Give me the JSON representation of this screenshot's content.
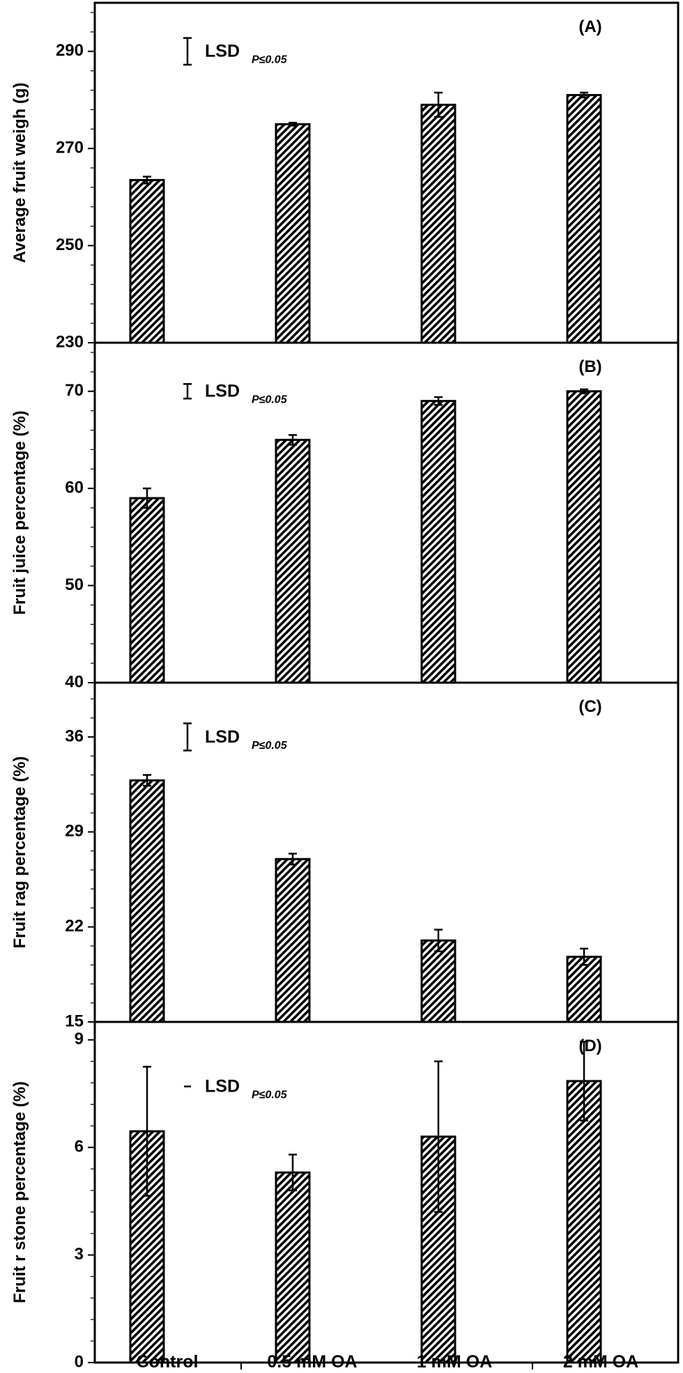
{
  "chart_data": [
    {
      "type": "bar",
      "panel_label": "(A)",
      "ylabel": "Average fruit weigh (g)",
      "ylim": [
        230,
        300
      ],
      "yticks": [
        230,
        250,
        270,
        290
      ],
      "categories": [
        "Control",
        "0.5 mM OA",
        "1 mM OA",
        "2 mM OA"
      ],
      "values": [
        263.5,
        275.0,
        279.0,
        281.0
      ],
      "errors": [
        0.7,
        0.3,
        2.5,
        0.5
      ],
      "lsd_label": "LSD",
      "lsd_subscript": "P≤0.05",
      "lsd_value": 5.5,
      "lsd_center": 290
    },
    {
      "type": "bar",
      "panel_label": "(B)",
      "ylabel": "Fruit juice percentage (%)",
      "ylim": [
        40,
        75
      ],
      "yticks": [
        40,
        50,
        60,
        70
      ],
      "categories": [
        "Control",
        "0.5 mM OA",
        "1 mM OA",
        "2 mM OA"
      ],
      "values": [
        59.0,
        65.0,
        69.0,
        70.0
      ],
      "errors": [
        1.0,
        0.5,
        0.4,
        0.2
      ],
      "lsd_label": "LSD",
      "lsd_subscript": "P≤0.05",
      "lsd_value": 1.5,
      "lsd_center": 70
    },
    {
      "type": "bar",
      "panel_label": "(C)",
      "ylabel": "Fruit rag percentage (%)",
      "ylim": [
        15,
        40
      ],
      "yticks": [
        15,
        22,
        29,
        36
      ],
      "categories": [
        "Control",
        "0.5 mM OA",
        "1 mM OA",
        "2 mM OA"
      ],
      "values": [
        32.8,
        27.0,
        21.0,
        19.8
      ],
      "errors": [
        0.4,
        0.4,
        0.8,
        0.6
      ],
      "lsd_label": "LSD",
      "lsd_subscript": "P≤0.05",
      "lsd_value": 2.0,
      "lsd_center": 36
    },
    {
      "type": "bar",
      "panel_label": "(D)",
      "ylabel": "Fruit r stone percentage (%)",
      "ylim": [
        0,
        9.5
      ],
      "yticks": [
        0,
        3,
        6,
        9
      ],
      "categories": [
        "Control",
        "0.5 mM OA",
        "1 mM OA",
        "2 mM OA"
      ],
      "values": [
        6.45,
        5.3,
        6.3,
        7.85
      ],
      "errors": [
        1.8,
        0.5,
        2.1,
        1.1
      ],
      "lsd_label": "LSD",
      "lsd_subscript": "P≤0.05",
      "lsd_value": 0.05,
      "lsd_center": 7.7
    }
  ]
}
